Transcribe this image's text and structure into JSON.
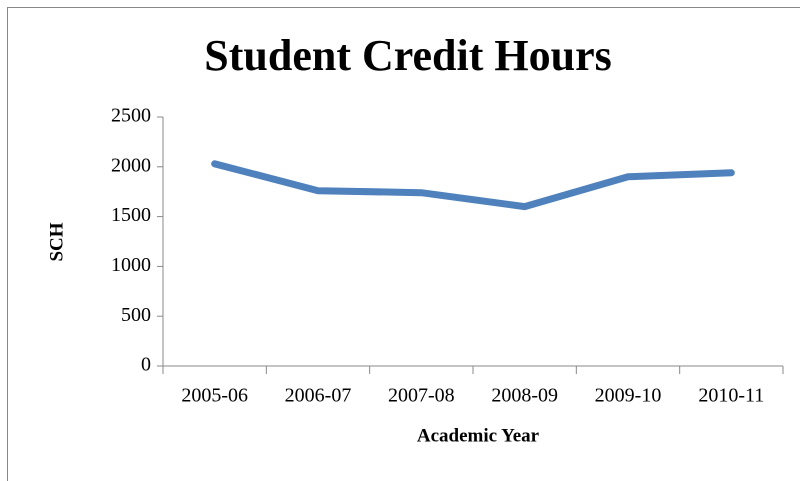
{
  "chart_data": {
    "type": "line",
    "title": "Student Credit Hours",
    "x_label": "Academic Year",
    "y_label": "SCH",
    "categories": [
      "2005-06",
      "2006-07",
      "2007-08",
      "2008-09",
      "2009-10",
      "2010-11"
    ],
    "series": [
      {
        "name": "SCH",
        "color": "#4f81bd",
        "values": [
          2030,
          1760,
          1740,
          1600,
          1900,
          1940
        ]
      }
    ],
    "ylim": [
      0,
      2500
    ],
    "yticks": [
      0,
      500,
      1000,
      1500,
      2000,
      2500
    ],
    "grid": false
  }
}
